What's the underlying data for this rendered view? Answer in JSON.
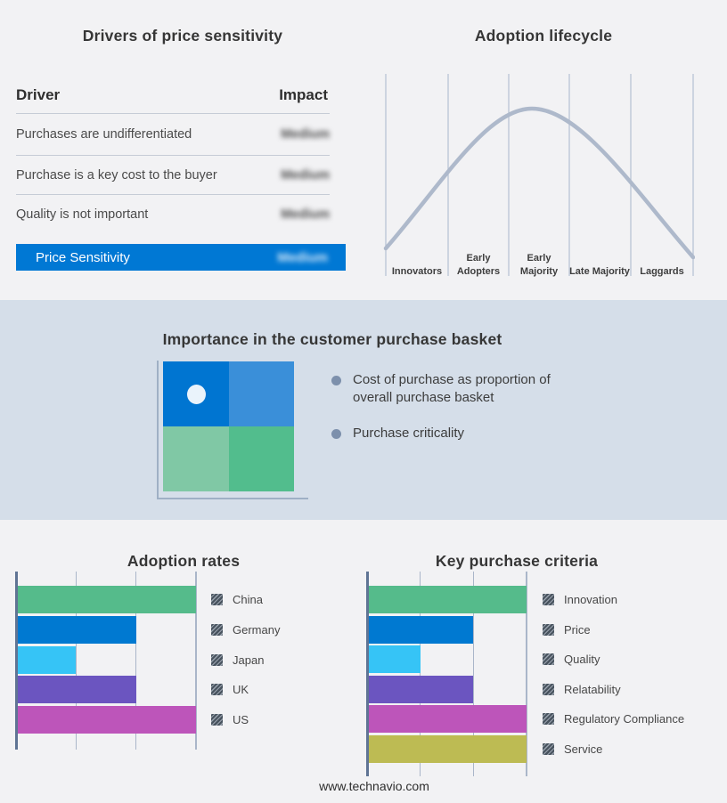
{
  "page": {
    "footer": "www.technavio.com",
    "background": "#f2f2f4",
    "band_background": "#d5dee9",
    "accent_blue": "#0078d4"
  },
  "drivers_panel": {
    "title": "Drivers of price sensitivity",
    "columns": {
      "driver": "Driver",
      "impact": "Impact"
    },
    "rows": [
      {
        "driver": "Purchases are undifferentiated",
        "impact": "Medium",
        "redacted": true
      },
      {
        "driver": "Purchase is a key cost to the buyer",
        "impact": "Medium",
        "redacted": true
      },
      {
        "driver": "Quality is not important",
        "impact": "Medium",
        "redacted": true
      }
    ],
    "highlight_row": {
      "driver": "Price Sensitivity",
      "impact": "Medium",
      "redacted": true,
      "background": "#0078d4"
    }
  },
  "lifecycle_panel": {
    "title": "Adoption lifecycle"
  },
  "basket_band": {
    "title": "Importance in the customer purchase basket",
    "bullets": [
      "Cost of purchase as proportion of overall purchase basket",
      "Purchase criticality"
    ],
    "quadrant_colors": {
      "top_left": "#0075d1",
      "top_right": "#3a8fd9",
      "bottom_left": "#80c8a5",
      "bottom_right": "#52bd8d"
    },
    "marker": "white dot in top-left quadrant"
  },
  "chart_data": [
    {
      "type": "line",
      "title": "Adoption lifecycle",
      "categories": [
        "Innovators",
        "Early Adopters",
        "Early Majority",
        "Late Majority",
        "Laggards"
      ],
      "curve": "bell",
      "points_norm": [
        [
          0,
          0.17
        ],
        [
          1,
          0.52
        ],
        [
          2,
          0.95
        ],
        [
          2.4,
          1.0
        ],
        [
          3,
          0.83
        ],
        [
          4,
          0.42
        ],
        [
          5,
          0.08
        ]
      ],
      "line_color": "#aeb9cb",
      "grid": "vertical stage dividers",
      "legend_position": "none"
    },
    {
      "type": "bar",
      "orientation": "horizontal",
      "title": "Adoption rates",
      "categories": [
        "China",
        "Germany",
        "Japan",
        "UK",
        "US"
      ],
      "values": [
        3,
        2,
        1,
        2,
        3
      ],
      "xlim": [
        0,
        3
      ],
      "grid": true,
      "legend_position": "right",
      "colors": [
        "#55bb8b",
        "#0079d1",
        "#36c4f6",
        "#6b55c0",
        "#bd55ba"
      ]
    },
    {
      "type": "bar",
      "orientation": "horizontal",
      "title": "Key purchase criteria",
      "categories": [
        "Innovation",
        "Price",
        "Quality",
        "Relatability",
        "Regulatory Compliance",
        "Service"
      ],
      "values": [
        3,
        2,
        1,
        2,
        3,
        3
      ],
      "xlim": [
        0,
        3
      ],
      "grid": true,
      "legend_position": "right",
      "colors": [
        "#55bb8b",
        "#0079d1",
        "#36c4f6",
        "#6b55c0",
        "#bd55ba",
        "#bdbb53"
      ]
    }
  ]
}
